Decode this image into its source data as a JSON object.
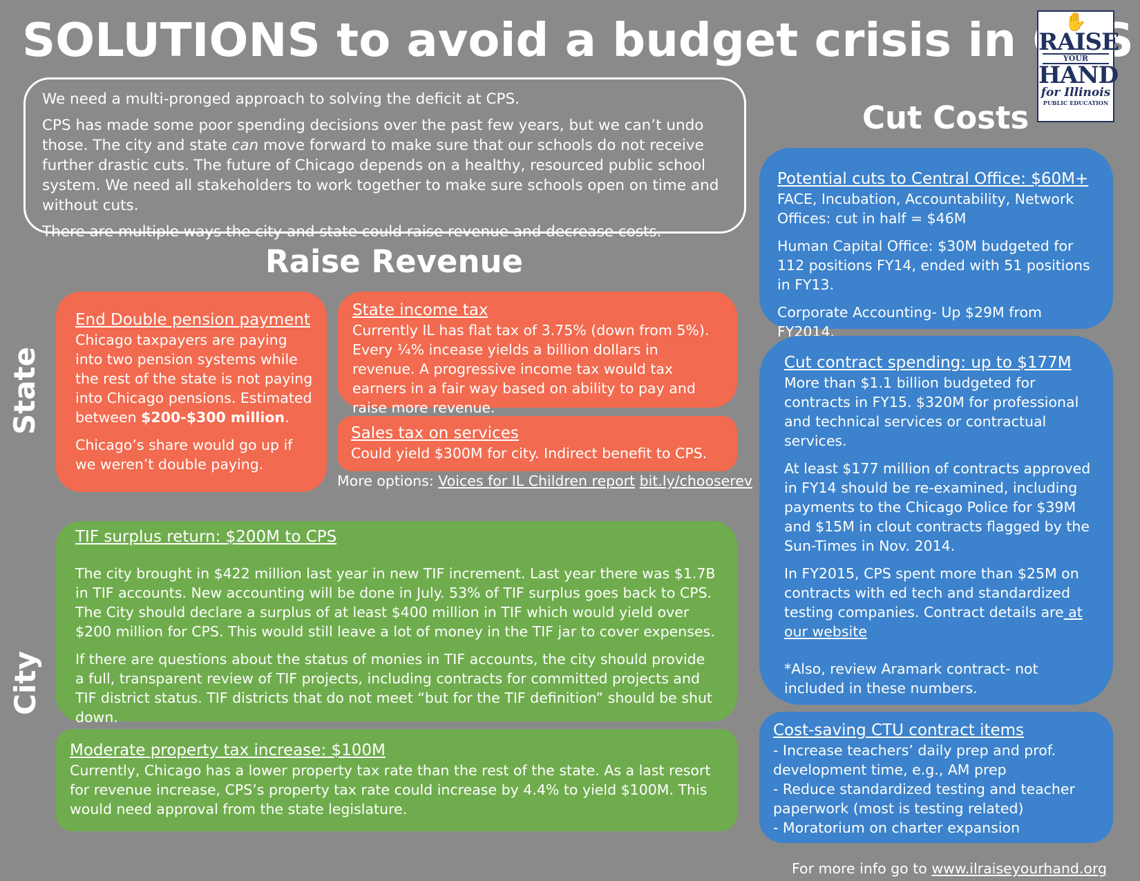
{
  "title": "SOLUTIONS to avoid a budget crisis in CPS",
  "logo": {
    "line1": "RAISE",
    "line2": "YOUR",
    "line3": "HAND",
    "line4": "for Illinois",
    "line5": "PUBLIC EDUCATION",
    "icon": "raised-hand-icon"
  },
  "intro": {
    "p1": "We need a multi-pronged approach to solving the deficit at CPS.",
    "p2a": "CPS has made some poor spending decisions over the past few years, but we can’t undo those. The city and state ",
    "p2em": "can",
    "p2b": " move forward to make sure that our schools do not receive further drastic cuts. The future of Chicago depends on a healthy, resourced public school system. We need all stakeholders to work together to make sure schools open on time and without cuts.",
    "p3": "There are multiple ways the city and state could raise revenue and decrease costs."
  },
  "raise_revenue_heading": "Raise Revenue",
  "cut_costs_heading": "Cut Costs",
  "state_label": "State",
  "city_label": "City",
  "pension": {
    "heading": "End Double pension payment",
    "p1a": "Chicago taxpayers are paying into two pension systems while the rest of the state is not paying into Chicago pensions. Estimated between ",
    "p1b": "$200-$300 million",
    "p1c": ".",
    "p2": "Chicago’s share would go up if we weren’t double paying."
  },
  "income_tax": {
    "heading": "State income tax",
    "body": "Currently IL has flat tax of 3.75% (down from 5%). Every ¼% incease yields a billion dollars in revenue.  A progressive income tax would tax earners in a fair way based on ability to pay and raise more revenue."
  },
  "sales_tax": {
    "heading": "Sales tax on services",
    "body": "Could yield $300M for city. Indirect benefit to CPS."
  },
  "more_options": {
    "label": "More options: ",
    "link1": "Voices for IL Children report",
    "link2": "bit.ly/chooserev"
  },
  "tif": {
    "heading": "TIF surplus return: $200M to CPS",
    "p1": "The city brought in $422 million last year in new TIF increment. Last year there was $1.7B in TIF accounts. New accounting will be done in July.  53% of TIF surplus goes back to CPS. The City should declare a surplus of at least $400 million in TIF which would yield over $200 million for CPS. This would still leave a lot of money in the TIF jar to cover expenses.",
    "p2": "If there are questions about the status of monies in TIF accounts,  the city should provide a full, transparent review of TIF projects, including contracts for committed projects and TIF district status. TIF districts that do not meet “but for the TIF definition” should be shut down."
  },
  "property_tax": {
    "heading": "Moderate property tax increase: $100M",
    "body": "Currently, Chicago has a lower property tax rate than the rest of the state. As a last resort for revenue increase, CPS’s property tax rate could increase by 4.4% to yield $100M.  This would need approval from the state legislature."
  },
  "central_office": {
    "heading": "Potential cuts to Central Office: $60M+",
    "p1": "FACE, Incubation, Accountability, Network Offices: cut in half = $46M",
    "p2": "Human Capital Office: $30M budgeted for 112 positions FY14, ended with 51 positions in FY13.",
    "p3": "Corporate Accounting- Up $29M from FY2014."
  },
  "contracts": {
    "heading": "Cut contract spending: up to $177M",
    "p1": "More than $1.1 billion budgeted for contracts in FY15. $320M for professional and technical services or contractual services.",
    "p2": "At least $177 million of contracts approved in FY14 should be re-examined, including payments to the Chicago Police for $39M and $15M in clout contracts flagged by the Sun-Times in Nov. 2014.",
    "p3a": "In FY2015, CPS spent more than $25M on contracts with ed tech and standardized testing companies.  Contract details are",
    "p3link": " at our website",
    "p4": "*Also, review Aramark contract- not included in these numbers."
  },
  "ctu": {
    "heading": "Cost-saving CTU contract items",
    "item1": "- Increase teachers’ daily prep and prof. development time, e.g., AM prep",
    "item2": "- Reduce standardized testing and teacher paperwork (most is testing related)",
    "item3": "- Moratorium on charter expansion"
  },
  "footer": {
    "label": "For more info go to ",
    "link": "www.ilraiseyourhand.org"
  }
}
